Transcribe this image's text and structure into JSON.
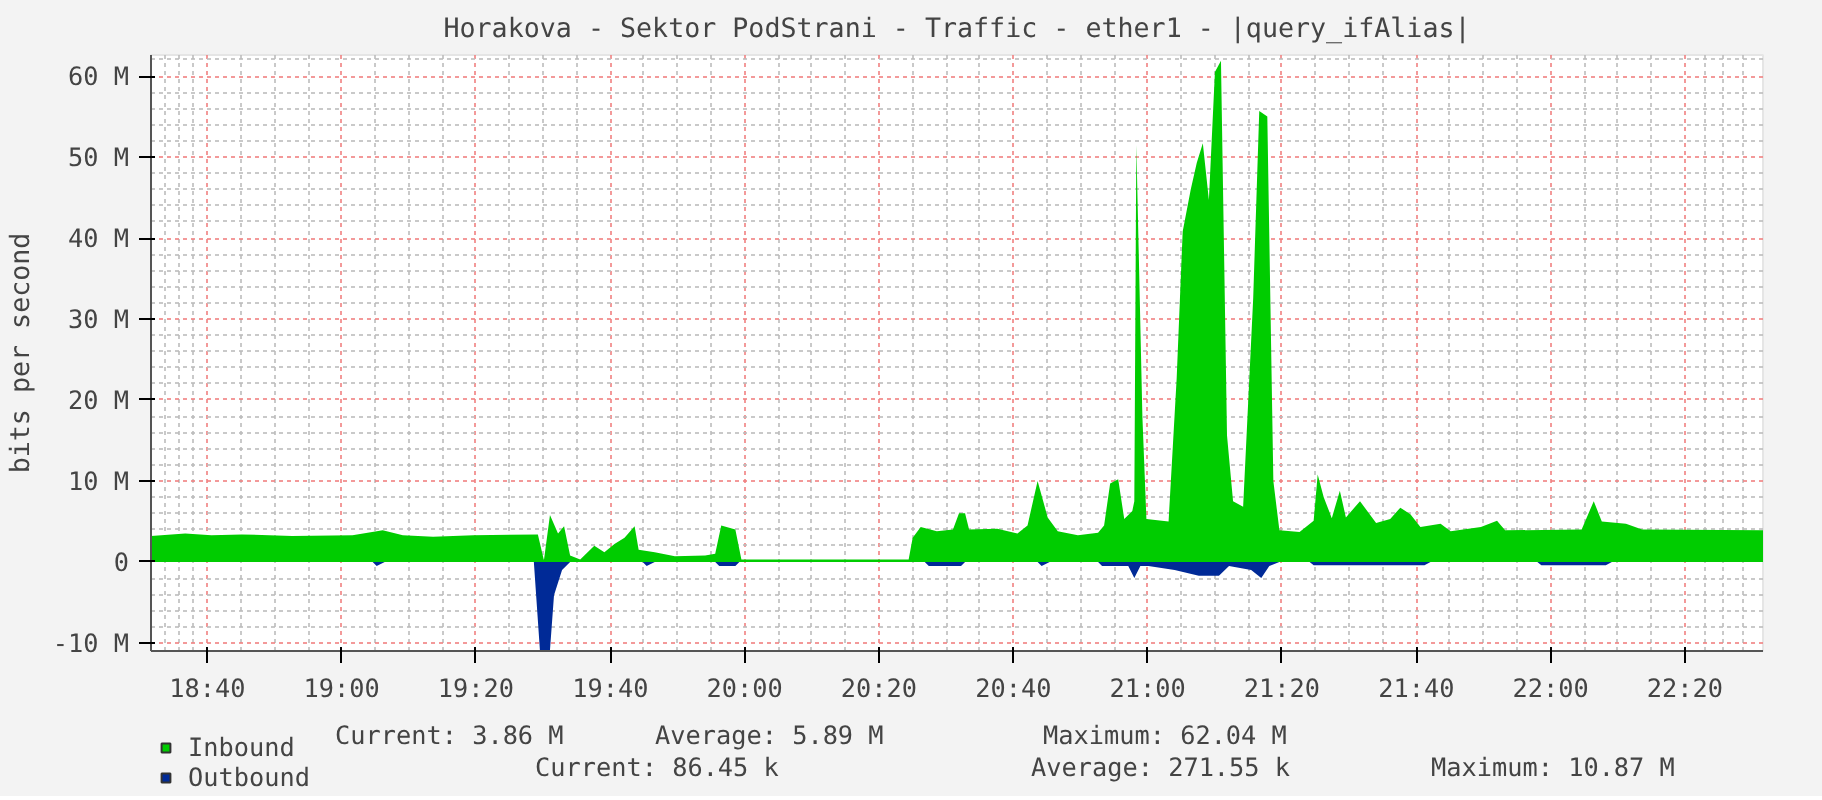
{
  "chart_data": {
    "type": "area",
    "title": "Horakova - Sektor PodStrani - Traffic - ether1 - |query_ifAlias|",
    "ylabel": "bits per second",
    "xlim": [
      18.527,
      22.527
    ],
    "ylim": [
      -11,
      62.6
    ],
    "xticks": [
      {
        "value": 18.667,
        "label": "18:40"
      },
      {
        "value": 19,
        "label": "19:00"
      },
      {
        "value": 19.333,
        "label": "19:20"
      },
      {
        "value": 19.667,
        "label": "19:40"
      },
      {
        "value": 20,
        "label": "20:00"
      },
      {
        "value": 20.333,
        "label": "20:20"
      },
      {
        "value": 20.667,
        "label": "20:40"
      },
      {
        "value": 21,
        "label": "21:00"
      },
      {
        "value": 21.333,
        "label": "21:20"
      },
      {
        "value": 21.667,
        "label": "21:40"
      },
      {
        "value": 22,
        "label": "22:00"
      },
      {
        "value": 22.333,
        "label": "22:20"
      }
    ],
    "yticks": [
      {
        "value": -10,
        "label": "-10 M"
      },
      0,
      {
        "value": 10,
        "label": "10 M"
      },
      {
        "value": 20,
        "label": "20 M"
      },
      {
        "value": 30,
        "label": "30 M"
      },
      {
        "value": 40,
        "label": "40 M"
      },
      {
        "value": 50,
        "label": "50 M"
      },
      {
        "value": 60,
        "label": "60 M"
      }
    ],
    "grid": true,
    "legend": "bottom",
    "annotations": [
      "Current: 3.86 M",
      "Average: 5.89 M",
      "Maximum: 62.04 M",
      "Current: 86.45 k",
      "Average: 271.55 k",
      "Maximum: 10.87 M"
    ],
    "series": [
      {
        "name": "Inbound",
        "color": "#00cc00",
        "x": [
          18.527,
          18.612,
          18.677,
          18.752,
          18.877,
          19.027,
          19.102,
          19.152,
          19.227,
          19.327,
          19.487,
          19.502,
          19.517,
          19.537,
          19.552,
          19.567,
          19.592,
          19.627,
          19.652,
          19.677,
          19.702,
          19.727,
          19.737,
          19.777,
          19.827,
          19.902,
          19.927,
          19.942,
          19.977,
          19.992,
          20.407,
          20.417,
          20.437,
          20.477,
          20.517,
          20.532,
          20.547,
          20.557,
          20.627,
          20.677,
          20.702,
          20.727,
          20.752,
          20.777,
          20.827,
          20.877,
          20.892,
          20.907,
          20.927,
          20.942,
          20.962,
          20.967,
          20.972,
          20.987,
          20.997,
          21.052,
          21.072,
          21.087,
          21.107,
          21.122,
          21.137,
          21.152,
          21.167,
          21.182,
          21.197,
          21.212,
          21.237,
          21.262,
          21.277,
          21.297,
          21.312,
          21.327,
          21.377,
          21.412,
          21.422,
          21.437,
          21.457,
          21.477,
          21.492,
          21.527,
          21.567,
          21.602,
          21.627,
          21.652,
          21.677,
          21.727,
          21.752,
          21.827,
          21.867,
          21.887,
          22.077,
          22.107,
          22.127,
          22.187,
          22.227,
          22.527
        ],
        "values": [
          3.2,
          3.5,
          3.3,
          3.4,
          3.2,
          3.3,
          3.9,
          3.3,
          3.1,
          3.3,
          3.4,
          0.2,
          5.8,
          3.5,
          4.4,
          0.8,
          0.3,
          2.0,
          1.2,
          2.2,
          3.0,
          4.4,
          1.5,
          1.2,
          0.7,
          0.8,
          1.0,
          4.5,
          4.0,
          0.3,
          0.3,
          3.0,
          4.3,
          3.8,
          4.0,
          6.0,
          6.0,
          4.0,
          4.1,
          3.5,
          4.5,
          10.0,
          5.5,
          3.8,
          3.3,
          3.6,
          4.5,
          9.7,
          10.2,
          5.3,
          6.3,
          7.5,
          51.5,
          18,
          5.3,
          5.0,
          22.6,
          40.8,
          46,
          49.3,
          51.7,
          44.7,
          60.5,
          61.9,
          15.6,
          7.5,
          6.8,
          32.6,
          55.7,
          55,
          10,
          3.9,
          3.7,
          5.1,
          10.8,
          8.0,
          5.4,
          8.8,
          5.5,
          7.5,
          4.8,
          5.3,
          6.7,
          5.9,
          4.3,
          4.7,
          3.8,
          4.3,
          5.1,
          3.9,
          4.0,
          7.5,
          5.0,
          4.7,
          4.0,
          3.9
        ]
      },
      {
        "name": "Outbound",
        "color": "#002a97",
        "x": [
          18.527,
          19.077,
          19.087,
          19.107,
          19.477,
          19.492,
          19.517,
          19.527,
          19.547,
          19.567,
          19.747,
          19.757,
          19.777,
          19.927,
          19.937,
          19.977,
          19.987,
          20.447,
          20.457,
          20.537,
          20.547,
          20.727,
          20.737,
          20.757,
          20.877,
          20.887,
          20.952,
          20.967,
          20.982,
          21.002,
          21.067,
          21.127,
          21.177,
          21.202,
          21.257,
          21.282,
          21.302,
          21.327,
          21.402,
          21.412,
          21.687,
          21.702,
          21.967,
          21.977,
          22.137,
          22.152,
          22.527
        ],
        "values": [
          0,
          0,
          -0.5,
          0,
          0,
          -10.87,
          -10.87,
          -4.1,
          -1.0,
          0,
          0,
          -0.5,
          0,
          0,
          -0.5,
          -0.5,
          0,
          0,
          -0.5,
          -0.5,
          0,
          0,
          -0.5,
          0,
          0,
          -0.5,
          -0.5,
          -2.0,
          -0.5,
          -0.5,
          -1.0,
          -1.7,
          -1.7,
          -0.5,
          -1.0,
          -2.0,
          -0.5,
          0,
          0,
          -0.4,
          -0.4,
          0,
          0,
          -0.4,
          -0.4,
          0,
          0
        ]
      }
    ]
  }
}
